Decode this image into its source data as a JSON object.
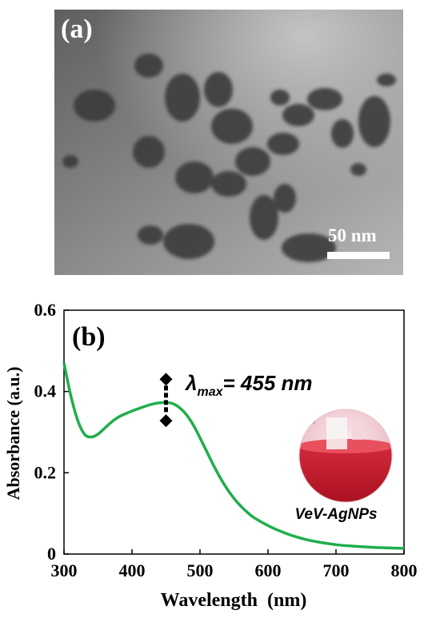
{
  "panel_a": {
    "label": "(a)",
    "scale_bar_label": "50 nm"
  },
  "panel_b": {
    "label": "(b)",
    "annotation": {
      "symbol": "λ",
      "subscript": "max",
      "rest": "= 455 nm"
    },
    "inset_caption": "VeV-AgNPs",
    "colors": {
      "curve": "#1fae4b",
      "marker": "#000000",
      "inset_liquid": "#c21a2a"
    }
  },
  "chart_data": {
    "type": "line",
    "title": "",
    "xlabel": "Wavelength  (nm)",
    "ylabel": "Absorbance (a.u.)",
    "xlim": [
      300,
      800
    ],
    "ylim": [
      0,
      0.6
    ],
    "xticks": [
      "300",
      "400",
      "500",
      "600",
      "700",
      "800"
    ],
    "yticks": [
      "0",
      "0.2",
      "0.4",
      "0.6"
    ],
    "grid": false,
    "series": [
      {
        "x": [
          300,
          310,
          320,
          330,
          340,
          350,
          360,
          370,
          380,
          390,
          400,
          410,
          420,
          430,
          440,
          450,
          460,
          470,
          480,
          490,
          500,
          510,
          520,
          530,
          540,
          550,
          560,
          570,
          580,
          600,
          620,
          640,
          660,
          680,
          700,
          720,
          740,
          760,
          780,
          800
        ],
        "y": [
          0.47,
          0.39,
          0.33,
          0.295,
          0.288,
          0.295,
          0.31,
          0.325,
          0.337,
          0.345,
          0.352,
          0.358,
          0.364,
          0.369,
          0.372,
          0.373,
          0.37,
          0.36,
          0.343,
          0.318,
          0.286,
          0.252,
          0.218,
          0.187,
          0.16,
          0.137,
          0.118,
          0.102,
          0.089,
          0.07,
          0.055,
          0.043,
          0.034,
          0.028,
          0.023,
          0.02,
          0.018,
          0.016,
          0.015,
          0.014
        ]
      }
    ],
    "markers": [
      {
        "x": 450,
        "y": 0.43
      },
      {
        "x": 450,
        "y": 0.328
      }
    ]
  }
}
